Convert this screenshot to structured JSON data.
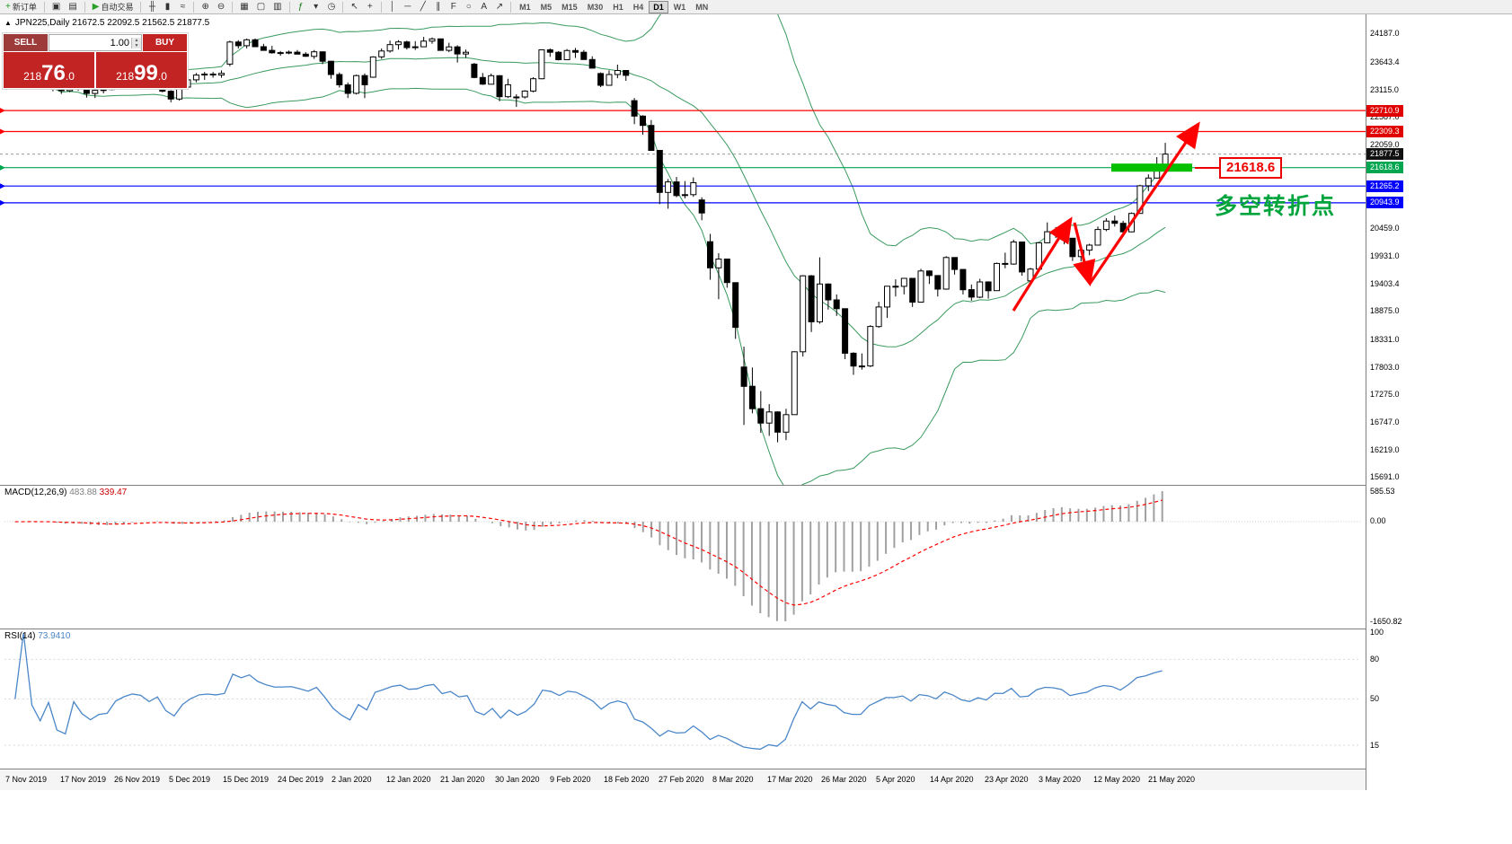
{
  "colors": {
    "bands": "#3a9a5f",
    "bull": "#ffffff",
    "bear": "#000000",
    "candle_outline": "#000000",
    "histogram": "#a0a0a0",
    "signal": "#ff0000",
    "rsi_line": "#4a86c8",
    "annotation_red": "#ff0000",
    "annotation_green": "#00a43c",
    "resistance_red": "#ff0000",
    "pivot_green": "#00a650",
    "support_blue": "#0000ff",
    "current_price_black": "#111111"
  },
  "icons": {
    "collapse": "▲",
    "spin_up": "▲",
    "spin_down": "▼"
  },
  "toolbar": {
    "items": [
      {
        "type": "button",
        "name": "new-order-button",
        "glyph": "+",
        "color": "#1a9a1a",
        "label": "新订单"
      },
      {
        "type": "sep"
      },
      {
        "type": "button",
        "name": "chart-window-icon",
        "glyph": "▣"
      },
      {
        "type": "button",
        "name": "profiles-icon",
        "glyph": "▤"
      },
      {
        "type": "sep"
      },
      {
        "type": "button",
        "name": "autotrading-button",
        "glyph": "▶",
        "color": "#2aa02a",
        "label": "自动交易"
      },
      {
        "type": "sep"
      },
      {
        "type": "button",
        "name": "bar-chart-icon",
        "glyph": "╫"
      },
      {
        "type": "button",
        "name": "candlestick-chart-icon",
        "glyph": "▮"
      },
      {
        "type": "button",
        "name": "line-chart-icon",
        "glyph": "≈"
      },
      {
        "type": "sep"
      },
      {
        "type": "button",
        "name": "zoom-in-icon",
        "glyph": "⊕"
      },
      {
        "type": "button",
        "name": "zoom-out-icon",
        "glyph": "⊖"
      },
      {
        "type": "sep"
      },
      {
        "type": "button",
        "name": "tile-windows-icon",
        "glyph": "▦"
      },
      {
        "type": "button",
        "name": "auto-arrange-icon",
        "glyph": "▢"
      },
      {
        "type": "button",
        "name": "chart-shift-icon",
        "glyph": "▥"
      },
      {
        "type": "sep"
      },
      {
        "type": "button",
        "name": "indicators-icon",
        "glyph": "ƒ",
        "color": "#0a7a0a"
      },
      {
        "type": "button",
        "name": "indicators-dropdown-icon",
        "glyph": "▾"
      },
      {
        "type": "button",
        "name": "periods-icon",
        "glyph": "◷"
      },
      {
        "type": "sep"
      },
      {
        "type": "button",
        "name": "cursor-icon",
        "glyph": "↖"
      },
      {
        "type": "button",
        "name": "crosshair-icon",
        "glyph": "+"
      },
      {
        "type": "sep"
      },
      {
        "type": "button",
        "name": "vertical-line-icon",
        "glyph": "│"
      },
      {
        "type": "button",
        "name": "horizontal-line-icon",
        "glyph": "─"
      },
      {
        "type": "button",
        "name": "trendline-icon",
        "glyph": "╱"
      },
      {
        "type": "button",
        "name": "channel-icon",
        "glyph": "∥"
      },
      {
        "type": "button",
        "name": "fibonacci-icon",
        "glyph": "F"
      },
      {
        "type": "button",
        "name": "shapes-icon",
        "glyph": "○"
      },
      {
        "type": "button",
        "name": "text-tool-button",
        "glyph": "A"
      },
      {
        "type": "button",
        "name": "arrows-tool-icon",
        "glyph": "↗"
      },
      {
        "type": "sep"
      },
      {
        "type": "tf",
        "name": "timeframe-m1",
        "label": "M1"
      },
      {
        "type": "tf",
        "name": "timeframe-m5",
        "label": "M5"
      },
      {
        "type": "tf",
        "name": "timeframe-m15",
        "label": "M15"
      },
      {
        "type": "tf",
        "name": "timeframe-m30",
        "label": "M30"
      },
      {
        "type": "tf",
        "name": "timeframe-h1",
        "label": "H1"
      },
      {
        "type": "tf",
        "name": "timeframe-h4",
        "label": "H4"
      },
      {
        "type": "tf",
        "name": "timeframe-d1",
        "label": "D1",
        "active": true
      },
      {
        "type": "tf",
        "name": "timeframe-w1",
        "label": "W1"
      },
      {
        "type": "tf",
        "name": "timeframe-mn",
        "label": "MN"
      }
    ]
  },
  "chart": {
    "title": "JPN225,Daily 21672.5 22092.5 21562.5 21877.5",
    "symbol": "JPN225",
    "period": "Daily"
  },
  "trade_panel": {
    "sell_label": "SELL",
    "buy_label": "BUY",
    "volume": "1.00",
    "sell_price": "21876.0",
    "buy_price": "21899.0"
  },
  "levels": [
    {
      "label": "22710.9",
      "value": 22710.9,
      "color": "#ff0000"
    },
    {
      "label": "22309.3",
      "value": 22309.3,
      "color": "#ff0000"
    },
    {
      "label": "21618.6",
      "value": 21618.6,
      "color": "#00a650"
    },
    {
      "label": "21265.2",
      "value": 21265.2,
      "color": "#0000ff"
    },
    {
      "label": "20943.9",
      "value": 20943.9,
      "color": "#0000ff"
    }
  ],
  "current_price": {
    "label": "21877.5",
    "value": 21877.5,
    "color": "#111111"
  },
  "price_axis": {
    "ticks": [
      "24187.0",
      "23643.4",
      "23115.0",
      "22587.0",
      "22059.0",
      "20459.0",
      "19931.0",
      "19403.4",
      "18875.0",
      "18331.0",
      "17803.0",
      "17275.0",
      "16747.0",
      "16219.0",
      "15691.0"
    ],
    "badges": [
      {
        "label": "22710.9",
        "value": 22710.9,
        "color": "#e00000"
      },
      {
        "label": "22309.3",
        "value": 22309.3,
        "color": "#e00000"
      },
      {
        "label": "21877.5",
        "value": 21877.5,
        "color": "#111111"
      },
      {
        "label": "21618.6",
        "value": 21618.6,
        "color": "#00a650"
      },
      {
        "label": "21265.2",
        "value": 21265.2,
        "color": "#0000ff"
      },
      {
        "label": "20943.9",
        "value": 20943.9,
        "color": "#0000ff"
      }
    ]
  },
  "annotations": {
    "breakout_label": "21618.6",
    "breakout_price": 21618.6,
    "turning_point_label": "多空转折点"
  },
  "macd": {
    "label": "MACD(12,26,9)",
    "value_main": "483.88",
    "value_signal": "339.47",
    "axis": [
      {
        "label": "585.53",
        "pos": "top"
      },
      {
        "label": "0.00",
        "pos": "zero"
      },
      {
        "label": "-1650.82",
        "pos": "bottom"
      }
    ]
  },
  "rsi": {
    "label": "RSI(14)",
    "value": "73.9410",
    "axis": [
      {
        "label": "100",
        "value": 100
      },
      {
        "label": "80",
        "value": 80
      },
      {
        "label": "50",
        "value": 50
      },
      {
        "label": "15",
        "value": 15
      }
    ]
  },
  "date_axis": [
    "7 Nov 2019",
    "17 Nov 2019",
    "26 Nov 2019",
    "5 Dec 2019",
    "15 Dec 2019",
    "24 Dec 2019",
    "2 Jan 2020",
    "12 Jan 2020",
    "21 Jan 2020",
    "30 Jan 2020",
    "9 Feb 2020",
    "18 Feb 2020",
    "27 Feb 2020",
    "8 Mar 2020",
    "17 Mar 2020",
    "26 Mar 2020",
    "5 Apr 2020",
    "14 Apr 2020",
    "23 Apr 2020",
    "3 May 2020",
    "12 May 2020",
    "21 May 2020"
  ],
  "chart_data": {
    "type": "candlestick",
    "symbol": "JPN225",
    "timeframe": "Daily",
    "price_axis_range": [
      15691.0,
      24187.0
    ],
    "indicators": [
      "Bollinger Bands",
      "MACD(12,26,9)",
      "RSI(14)"
    ],
    "candles": [
      [
        23300,
        23352,
        23250,
        23331
      ],
      [
        23331,
        23400,
        23282,
        23391
      ],
      [
        23391,
        23421,
        23300,
        23319
      ],
      [
        23319,
        23340,
        23181,
        23272
      ],
      [
        23272,
        23321,
        23200,
        23319
      ],
      [
        23319,
        23350,
        23081,
        23141
      ],
      [
        23141,
        23182,
        23030,
        23091
      ],
      [
        23091,
        23340,
        23062,
        23303
      ],
      [
        23303,
        23352,
        23090,
        23148
      ],
      [
        23148,
        23180,
        22960,
        23038
      ],
      [
        23038,
        23130,
        22951,
        23098
      ],
      [
        23098,
        23178,
        23040,
        23113
      ],
      [
        23113,
        23302,
        23100,
        23292
      ],
      [
        23292,
        23380,
        23250,
        23373
      ],
      [
        23373,
        23450,
        23300,
        23432
      ],
      [
        23432,
        23461,
        23350,
        23409
      ],
      [
        23409,
        23450,
        23291,
        23293
      ],
      [
        23293,
        23420,
        23270,
        23379
      ],
      [
        23379,
        23391,
        23060,
        23082
      ],
      [
        23082,
        23101,
        22870,
        22932
      ],
      [
        22932,
        23180,
        22900,
        23161
      ],
      [
        23161,
        23320,
        23130,
        23300
      ],
      [
        23300,
        23430,
        23251,
        23391
      ],
      [
        23391,
        23451,
        23300,
        23410
      ],
      [
        23410,
        23450,
        23341,
        23392
      ],
      [
        23392,
        23480,
        23340,
        23424
      ],
      [
        23600,
        24050,
        23560,
        24023
      ],
      [
        24023,
        24060,
        23900,
        23952
      ],
      [
        23952,
        24091,
        23901,
        24066
      ],
      [
        24066,
        24091,
        23930,
        23934
      ],
      [
        23934,
        23990,
        23870,
        23864
      ],
      [
        23864,
        23950,
        23800,
        23817
      ],
      [
        23817,
        23851,
        23760,
        23821
      ],
      [
        23821,
        23860,
        23790,
        23830
      ],
      [
        23830,
        23871,
        23791,
        23792
      ],
      [
        23792,
        23830,
        23740,
        23750
      ],
      [
        23750,
        23870,
        23700,
        23837
      ],
      [
        23837,
        23841,
        23600,
        23656
      ],
      [
        23656,
        23661,
        23320,
        23401
      ],
      [
        23401,
        23440,
        23150,
        23204
      ],
      [
        23204,
        23250,
        22951,
        23041
      ],
      [
        23041,
        23400,
        23020,
        23380
      ],
      [
        23380,
        23421,
        22951,
        23204
      ],
      [
        23350,
        23750,
        23340,
        23739
      ],
      [
        23739,
        23900,
        23701,
        23851
      ],
      [
        23851,
        24051,
        23820,
        23973
      ],
      [
        23973,
        24060,
        23880,
        24025
      ],
      [
        24025,
        24050,
        23880,
        23917
      ],
      [
        23917,
        24041,
        23870,
        23933
      ],
      [
        23933,
        24121,
        23930,
        24041
      ],
      [
        24041,
        24110,
        23990,
        24084
      ],
      [
        24084,
        24091,
        23860,
        23864
      ],
      [
        23864,
        24010,
        23830,
        23931
      ],
      [
        23931,
        23961,
        23630,
        23795
      ],
      [
        23795,
        23880,
        23720,
        23827
      ],
      [
        23600,
        23621,
        23330,
        23344
      ],
      [
        23344,
        23430,
        23201,
        23216
      ],
      [
        23216,
        23420,
        23210,
        23379
      ],
      [
        23379,
        23391,
        22890,
        22977
      ],
      [
        22977,
        23320,
        22950,
        23205
      ],
      [
        22970,
        23021,
        22780,
        22972
      ],
      [
        22972,
        23100,
        22940,
        23085
      ],
      [
        23085,
        23350,
        23060,
        23320
      ],
      [
        23320,
        23880,
        23310,
        23874
      ],
      [
        23874,
        23901,
        23740,
        23828
      ],
      [
        23828,
        23850,
        23670,
        23686
      ],
      [
        23686,
        23890,
        23680,
        23861
      ],
      [
        23861,
        23910,
        23720,
        23828
      ],
      [
        23828,
        23870,
        23690,
        23688
      ],
      [
        23688,
        23750,
        23520,
        23523
      ],
      [
        23420,
        23441,
        23160,
        23194
      ],
      [
        23194,
        23480,
        23190,
        23401
      ],
      [
        23401,
        23590,
        23330,
        23479
      ],
      [
        23479,
        23481,
        23280,
        23387
      ],
      [
        22900,
        22950,
        22450,
        22605
      ],
      [
        22605,
        22620,
        22250,
        22426
      ],
      [
        22426,
        22530,
        21940,
        21948
      ],
      [
        21948,
        21951,
        20920,
        21143
      ],
      [
        21143,
        21400,
        20830,
        21344
      ],
      [
        21344,
        21440,
        21050,
        21083
      ],
      [
        21083,
        21360,
        21030,
        21100
      ],
      [
        21100,
        21430,
        21060,
        21329
      ],
      [
        21000,
        21050,
        20610,
        20750
      ],
      [
        20200,
        20350,
        19470,
        19699
      ],
      [
        19699,
        19980,
        19100,
        19867
      ],
      [
        19867,
        19871,
        19320,
        19416
      ],
      [
        19416,
        19421,
        18340,
        18560
      ],
      [
        17800,
        18190,
        16690,
        17431
      ],
      [
        17431,
        17790,
        16914,
        17002
      ],
      [
        17002,
        17340,
        16540,
        16727
      ],
      [
        16727,
        17090,
        16480,
        16940
      ],
      [
        16940,
        16951,
        16358,
        16553
      ],
      [
        16553,
        17000,
        16400,
        16888
      ],
      [
        16888,
        18100,
        16890,
        18092
      ],
      [
        18092,
        19560,
        18000,
        19546
      ],
      [
        19546,
        19561,
        18470,
        18665
      ],
      [
        18665,
        19900,
        18630,
        19389
      ],
      [
        19389,
        19401,
        18900,
        19085
      ],
      [
        19085,
        19190,
        18780,
        18917
      ],
      [
        18917,
        18921,
        17950,
        18065
      ],
      [
        18065,
        18081,
        17650,
        17819
      ],
      [
        17819,
        18060,
        17750,
        17820
      ],
      [
        17820,
        18600,
        17800,
        18576
      ],
      [
        18576,
        19050,
        18550,
        18950
      ],
      [
        18950,
        19351,
        18740,
        19347
      ],
      [
        19347,
        19480,
        19150,
        19346
      ],
      [
        19346,
        19500,
        19190,
        19499
      ],
      [
        19499,
        19501,
        18950,
        19043
      ],
      [
        19043,
        19680,
        19040,
        19639
      ],
      [
        19639,
        19651,
        19390,
        19551
      ],
      [
        19551,
        19560,
        19150,
        19291
      ],
      [
        19291,
        19922,
        19280,
        19897
      ],
      [
        19897,
        19901,
        19570,
        19669
      ],
      [
        19669,
        19671,
        19190,
        19281
      ],
      [
        19281,
        19380,
        19070,
        19138
      ],
      [
        19138,
        19490,
        19120,
        19430
      ],
      [
        19430,
        19441,
        19110,
        19262
      ],
      [
        19262,
        19800,
        19260,
        19783
      ],
      [
        19783,
        19990,
        19690,
        19771
      ],
      [
        19771,
        20240,
        19760,
        20194
      ],
      [
        20194,
        20200,
        19550,
        19619
      ],
      [
        19450,
        19700,
        19420,
        19675
      ],
      [
        19675,
        20190,
        19670,
        20179
      ],
      [
        20179,
        20570,
        20170,
        20391
      ],
      [
        20391,
        20480,
        20270,
        20366
      ],
      [
        20366,
        20420,
        20150,
        20267
      ],
      [
        20267,
        20271,
        19830,
        19915
      ],
      [
        19915,
        20110,
        19820,
        20037
      ],
      [
        20037,
        20160,
        19940,
        20134
      ],
      [
        20134,
        20490,
        20130,
        20433
      ],
      [
        20433,
        20650,
        20400,
        20595
      ],
      [
        20595,
        20700,
        20490,
        20552
      ],
      [
        20552,
        20600,
        20290,
        20388
      ],
      [
        20388,
        20760,
        20380,
        20741
      ],
      [
        20741,
        21290,
        20740,
        21271
      ],
      [
        21271,
        21490,
        21170,
        21419
      ],
      [
        21419,
        21820,
        21410,
        21672
      ],
      [
        21672.5,
        22092.5,
        21562.5,
        21877.5
      ]
    ]
  }
}
